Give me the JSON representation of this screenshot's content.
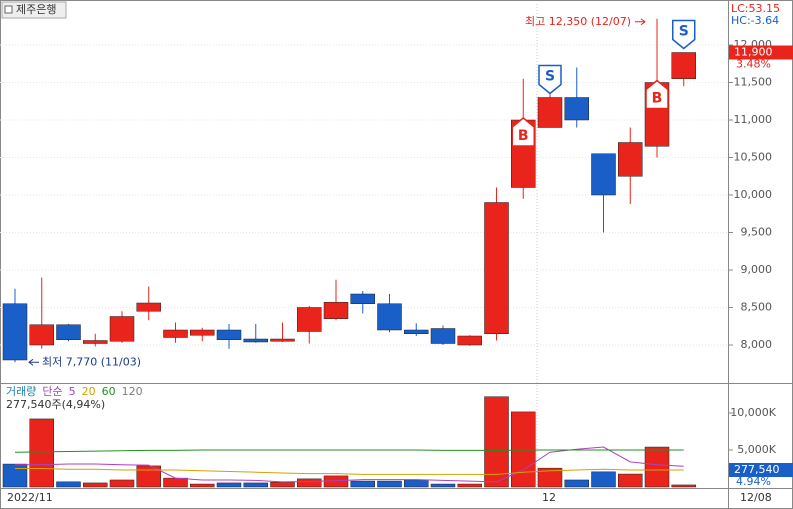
{
  "chart_data": [
    {
      "type": "candlestick",
      "title": "제주은행",
      "lc": "LC:53.15",
      "hc": "HC:-3.64",
      "open": [
        8550,
        8000,
        8270,
        8020,
        8050,
        8450,
        8100,
        8130,
        8200,
        8080,
        8050,
        8180,
        8350,
        8680,
        8550,
        8200,
        8220,
        8000,
        8150,
        10100,
        10900,
        11300,
        10550,
        10250,
        10650,
        11550
      ],
      "high": [
        8750,
        8900,
        8280,
        8150,
        8450,
        8780,
        8300,
        8230,
        8280,
        8280,
        8300,
        8520,
        8870,
        8720,
        8680,
        8290,
        8260,
        8130,
        10100,
        11550,
        11500,
        11700,
        10550,
        10900,
        12350,
        11900
      ],
      "low": [
        7770,
        7950,
        8050,
        7980,
        8030,
        8330,
        8030,
        8050,
        7950,
        8030,
        8040,
        8020,
        8330,
        8420,
        8170,
        8120,
        8000,
        7990,
        8060,
        9950,
        10900,
        10900,
        9500,
        9880,
        10500,
        11450
      ],
      "close": [
        7800,
        8270,
        8070,
        8060,
        8380,
        8560,
        8200,
        8200,
        8070,
        8040,
        8080,
        8500,
        8570,
        8550,
        8200,
        8150,
        8020,
        8120,
        9900,
        11000,
        11300,
        11000,
        10000,
        10700,
        11500,
        11900
      ],
      "up_color": "#e8241c",
      "down_color": "#1a5fc8",
      "ylim": [
        7500,
        12550
      ],
      "yticks": [
        {
          "value": 8000,
          "label": "8,000"
        },
        {
          "value": 8500,
          "label": "8,500"
        },
        {
          "value": 9000,
          "label": "9,000"
        },
        {
          "value": 9500,
          "label": "9,500"
        },
        {
          "value": 10000,
          "label": "10,000"
        },
        {
          "value": 10500,
          "label": "10,500"
        },
        {
          "value": 11000,
          "label": "11,000"
        },
        {
          "value": 11500,
          "label": "11,500"
        },
        {
          "value": 12000,
          "label": "12,000"
        }
      ],
      "last_price": {
        "value": 11900,
        "label": "11,900"
      },
      "change": "3.48%",
      "high_annotation": {
        "index": 24,
        "text": "최고 12,350 (12/07)"
      },
      "low_annotation": {
        "index": 0,
        "text": "최저 7,770 (11/03)"
      },
      "signals": [
        {
          "index": 19,
          "label": "B"
        },
        {
          "index": 20,
          "label": "S"
        },
        {
          "index": 24,
          "label": "B"
        },
        {
          "index": 25,
          "label": "S"
        }
      ]
    },
    {
      "type": "volume",
      "legend": [
        "거래량",
        "단순",
        "5",
        "20",
        "60",
        "120"
      ],
      "legend_colors": [
        "#2080b0",
        "#a040c0",
        "#a040c0",
        "#d0a000",
        "#209020",
        "#808080"
      ],
      "info": "277,540주(4,94%)",
      "values": [
        3100,
        9200,
        700,
        550,
        950,
        2850,
        1200,
        400,
        550,
        550,
        650,
        1100,
        1500,
        800,
        800,
        950,
        400,
        400,
        12200,
        10150,
        2550,
        950,
        2050,
        1750,
        5400,
        277.54
      ],
      "last_label": "277,540",
      "last_pct": "4.94%",
      "series": [
        {
          "name": "5",
          "color": "#b040c0",
          "values": [
            3000,
            3000,
            3100,
            3100,
            3000,
            2950,
            1200,
            950,
            950,
            900,
            700,
            750,
            850,
            1000,
            1000,
            1000,
            900,
            800,
            700,
            2300,
            4700,
            5100,
            5400,
            3400,
            3000,
            2800
          ]
        },
        {
          "name": "20",
          "color": "#d8a000",
          "values": [
            2500,
            2500,
            2400,
            2400,
            2300,
            2300,
            2300,
            2200,
            2100,
            2000,
            1900,
            1800,
            1800,
            1700,
            1700,
            1700,
            1700,
            1700,
            1700,
            2000,
            2200,
            2300,
            2400,
            2300,
            2300,
            2300
          ]
        },
        {
          "name": "60",
          "color": "#209020",
          "values": [
            4700,
            4750,
            4800,
            4850,
            4900,
            4950,
            4950,
            5000,
            5000,
            5000,
            5000,
            5000,
            5000,
            5000,
            5000,
            5000,
            4950,
            4950,
            4950,
            5000,
            5000,
            5000,
            5000,
            5000,
            5000,
            5000
          ]
        }
      ],
      "ylim": [
        0,
        13000
      ],
      "yticks": [
        {
          "value": 5000,
          "label": "5,000K"
        },
        {
          "value": 10000,
          "label": "10,000K"
        }
      ],
      "x_labels": [
        {
          "index": 0,
          "label": "2022/11"
        },
        {
          "index": 20,
          "label": "12"
        }
      ],
      "last_date": "12/08"
    }
  ]
}
